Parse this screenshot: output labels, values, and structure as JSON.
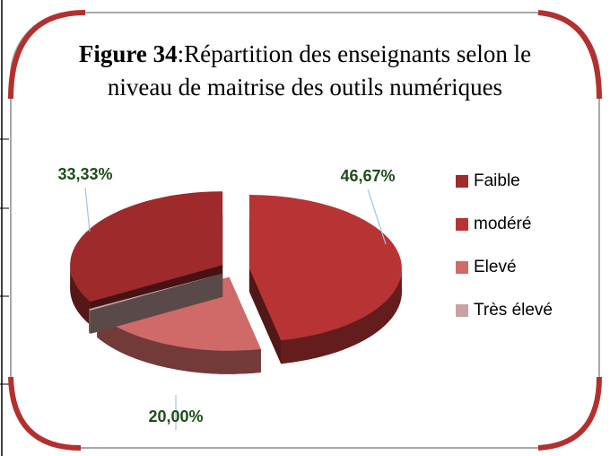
{
  "chart_data": {
    "type": "pie3d",
    "figure_label": "Figure 34",
    "title": ":Répartition des enseignants selon le niveau de maitrise des outils numériques",
    "categories": [
      "Faible",
      "modéré",
      "Elevé",
      "Très élevé"
    ],
    "values": [
      33.33,
      46.67,
      20.0,
      0
    ],
    "value_labels": [
      "33,33%",
      "46,67%",
      "20,00%",
      null
    ],
    "colors": [
      "#9e2a2b",
      "#b83434",
      "#d06a68",
      "#c9a3a3"
    ],
    "legend": "right"
  }
}
